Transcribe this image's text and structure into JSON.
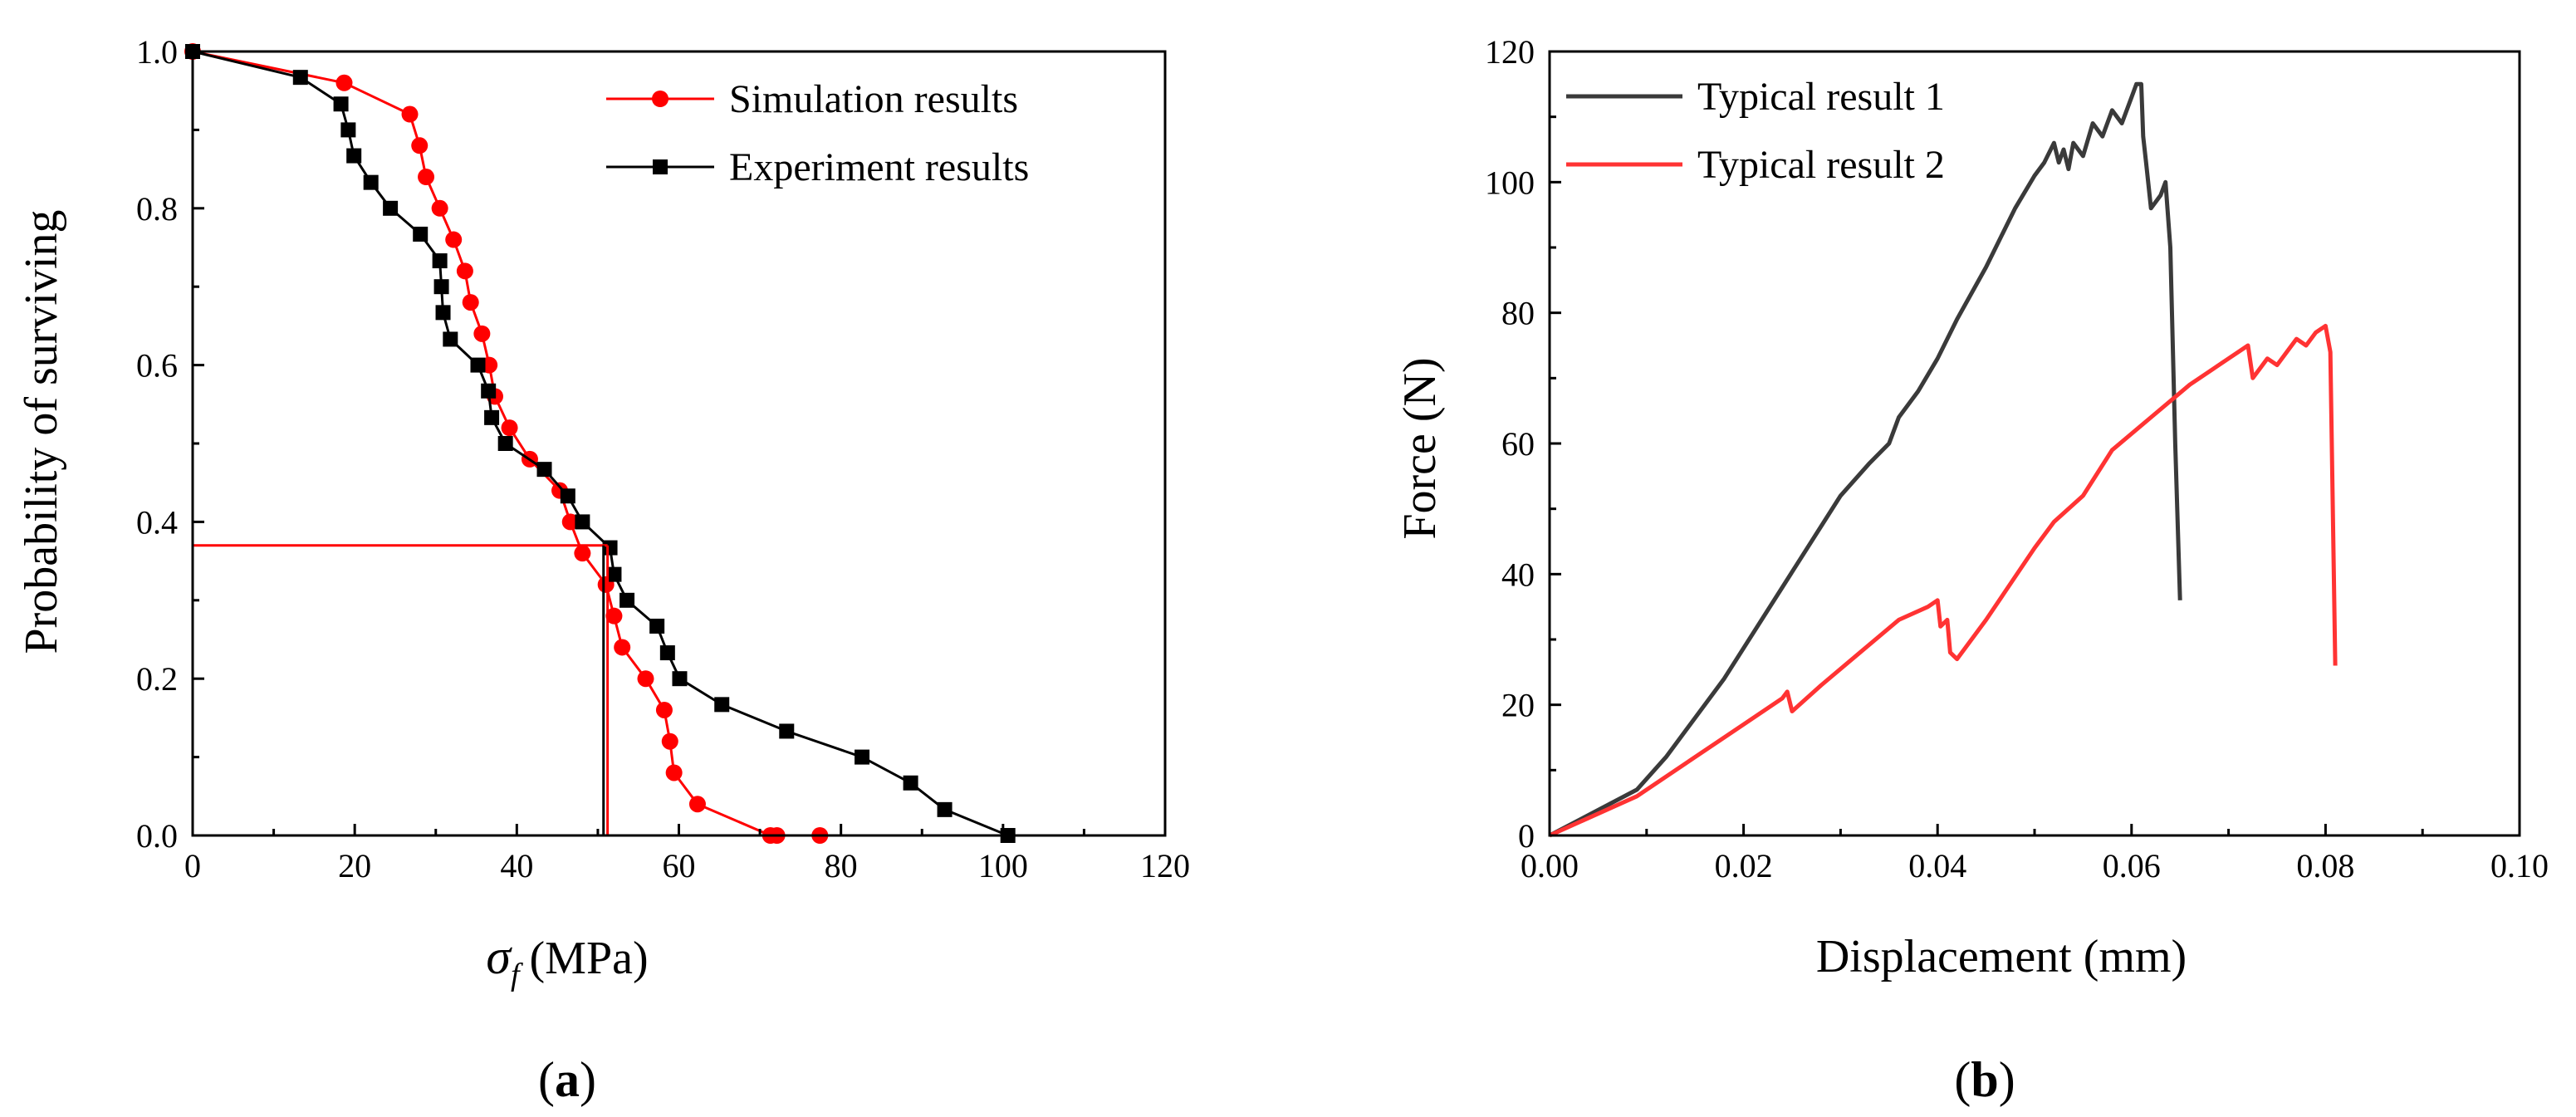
{
  "chart_data": [
    {
      "type": "line",
      "panel_label": "a",
      "xlabel_symbol": "σ",
      "xlabel_subscript": "f",
      "xlabel_unit": "(MPa)",
      "ylabel": "Probability of surviving",
      "xlim": [
        0,
        120
      ],
      "ylim": [
        0,
        1.0
      ],
      "xticks": [
        0,
        20,
        40,
        60,
        80,
        100,
        120
      ],
      "yticks": [
        0.0,
        0.2,
        0.4,
        0.6,
        0.8,
        1.0
      ],
      "xtick_labels": [
        "0",
        "20",
        "40",
        "60",
        "80",
        "100",
        "120"
      ],
      "ytick_labels": [
        "0.0",
        "0.2",
        "0.4",
        "0.6",
        "0.8",
        "1.0"
      ],
      "legend_position": "top-right",
      "series": [
        {
          "name": "Simulation results",
          "color": "#ff0000",
          "marker": "circle",
          "x": [
            0,
            18.7,
            26.8,
            28.0,
            28.8,
            30.5,
            32.2,
            33.6,
            34.3,
            35.7,
            36.6,
            37.3,
            39.1,
            41.6,
            45.3,
            46.6,
            48.1,
            51.0,
            52.0,
            53.0,
            55.9,
            58.2,
            58.9,
            59.4,
            62.3,
            71.3,
            72.1,
            77.4
          ],
          "y": [
            1.0,
            0.96,
            0.92,
            0.88,
            0.84,
            0.8,
            0.76,
            0.72,
            0.68,
            0.64,
            0.6,
            0.56,
            0.52,
            0.48,
            0.44,
            0.4,
            0.36,
            0.32,
            0.28,
            0.24,
            0.2,
            0.16,
            0.12,
            0.08,
            0.04,
            0.0,
            0.0,
            0.0
          ]
        },
        {
          "name": "Experiment results",
          "color": "#000000",
          "marker": "square",
          "x": [
            0,
            13.3,
            18.3,
            19.2,
            19.9,
            22.0,
            24.4,
            28.1,
            30.5,
            30.7,
            30.9,
            31.8,
            35.2,
            36.5,
            36.9,
            38.6,
            43.4,
            46.3,
            48.1,
            51.5,
            52.0,
            53.6,
            57.3,
            58.6,
            60.1,
            65.3,
            73.3,
            82.6,
            88.6,
            92.8,
            100.6
          ],
          "y": [
            1.0,
            0.967,
            0.933,
            0.9,
            0.867,
            0.833,
            0.8,
            0.767,
            0.733,
            0.7,
            0.667,
            0.633,
            0.6,
            0.567,
            0.533,
            0.5,
            0.467,
            0.433,
            0.4,
            0.367,
            0.333,
            0.3,
            0.267,
            0.233,
            0.2,
            0.167,
            0.133,
            0.1,
            0.067,
            0.033,
            0.0
          ]
        }
      ],
      "reference_lines": [
        {
          "color": "#ff0000",
          "y": 0.37,
          "x_from": 0,
          "x_to": 51.2
        },
        {
          "color": "#ff0000",
          "x": 51.2,
          "y_from": 0,
          "y_to": 0.37
        },
        {
          "color": "#000000",
          "x": 50.7,
          "y_from": 0,
          "y_to": 0.37
        }
      ]
    },
    {
      "type": "line",
      "panel_label": "b",
      "xlabel": "Displacement (mm)",
      "ylabel": "Force (N)",
      "xlim": [
        0,
        0.1
      ],
      "ylim": [
        0,
        120
      ],
      "xticks": [
        0,
        0.02,
        0.04,
        0.06,
        0.08,
        0.1
      ],
      "yticks": [
        0,
        20,
        40,
        60,
        80,
        100,
        120
      ],
      "xtick_labels": [
        "0.00",
        "0.02",
        "0.04",
        "0.06",
        "0.08",
        "0.10"
      ],
      "ytick_labels": [
        "0",
        "20",
        "40",
        "60",
        "80",
        "100",
        "120"
      ],
      "legend_position": "top-left",
      "series": [
        {
          "name": "Typical result 1",
          "color": "#3a3a3a",
          "x": [
            0.0,
            0.009,
            0.012,
            0.018,
            0.024,
            0.03,
            0.033,
            0.035,
            0.036,
            0.038,
            0.04,
            0.042,
            0.045,
            0.048,
            0.05,
            0.051,
            0.052,
            0.0525,
            0.053,
            0.0535,
            0.054,
            0.055,
            0.056,
            0.057,
            0.058,
            0.059,
            0.06,
            0.0605,
            0.061,
            0.0612,
            0.0615,
            0.062,
            0.063,
            0.0635,
            0.064,
            0.0645,
            0.065
          ],
          "y": [
            0,
            7,
            12,
            24,
            38,
            52,
            57,
            60,
            64,
            68,
            73,
            79,
            87,
            96,
            101,
            103,
            106,
            103,
            105,
            102,
            106,
            104,
            109,
            107,
            111,
            109,
            113,
            115,
            115,
            107,
            103,
            96,
            98,
            100,
            90,
            60,
            36
          ]
        },
        {
          "name": "Typical result 2",
          "color": "#ff3333",
          "x": [
            0.0,
            0.009,
            0.015,
            0.02,
            0.024,
            0.0245,
            0.025,
            0.028,
            0.032,
            0.036,
            0.039,
            0.04,
            0.0403,
            0.041,
            0.0413,
            0.042,
            0.045,
            0.05,
            0.052,
            0.055,
            0.058,
            0.062,
            0.066,
            0.07,
            0.072,
            0.0725,
            0.073,
            0.074,
            0.075,
            0.076,
            0.077,
            0.078,
            0.079,
            0.08,
            0.0805,
            0.081
          ],
          "y": [
            0,
            6,
            12,
            17,
            21,
            22,
            19,
            23,
            28,
            33,
            35,
            36,
            32,
            33,
            28,
            27,
            33,
            44,
            48,
            52,
            59,
            64,
            69,
            73,
            75,
            70,
            71,
            73,
            72,
            74,
            76,
            75,
            77,
            78,
            74,
            26
          ]
        }
      ]
    }
  ]
}
